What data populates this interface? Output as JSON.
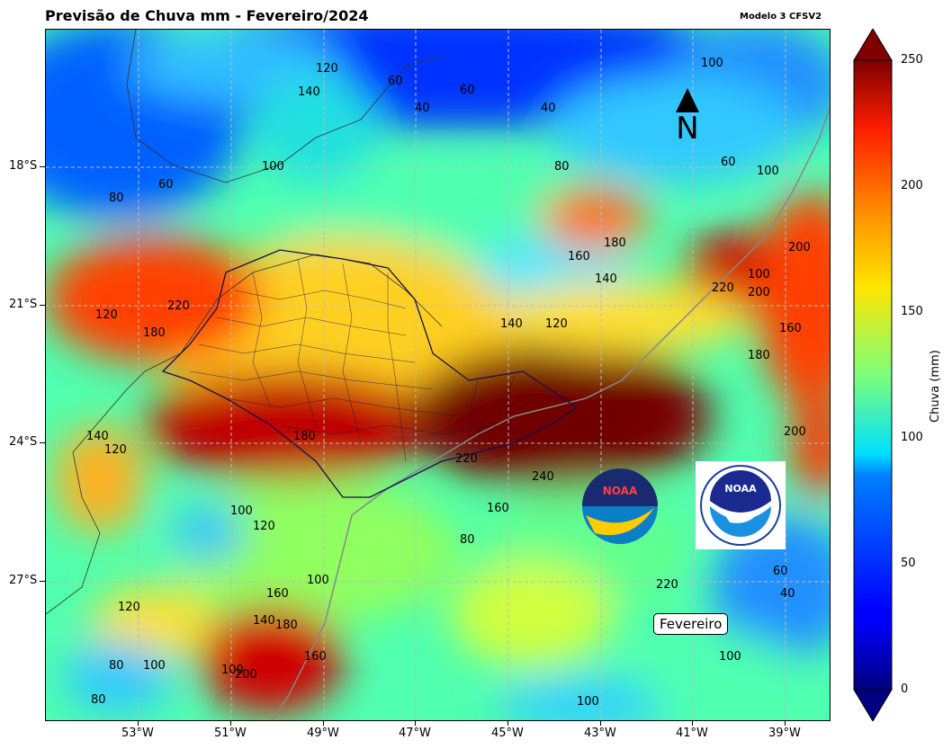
{
  "title": "Previsão de Chuva mm - Fevereiro/2024",
  "model_label": "Modelo 3 CFSV2",
  "north_label": "N",
  "month_box": "Fevereiro",
  "colorbar": {
    "label": "Chuva (mm)",
    "ticks": [
      "0",
      "50",
      "100",
      "150",
      "200",
      "250"
    ],
    "range": [
      0,
      250
    ]
  },
  "axes": {
    "lat_ticks": [
      "18°S",
      "21°S",
      "24°S",
      "27°S"
    ],
    "lon_ticks": [
      "53°W",
      "51°W",
      "49°W",
      "47°W",
      "45°W",
      "43°W",
      "41°W",
      "39°W"
    ]
  },
  "contour_labels": [
    "120",
    "60",
    "40",
    "60",
    "40",
    "100",
    "140",
    "100",
    "80",
    "60",
    "100",
    "80",
    "60",
    "100",
    "180",
    "160",
    "140",
    "200",
    "220",
    "200",
    "120",
    "220",
    "180",
    "140",
    "120",
    "180",
    "160",
    "180",
    "140",
    "120",
    "200",
    "220",
    "240",
    "160",
    "100",
    "120",
    "160",
    "120",
    "100",
    "80",
    "60",
    "40",
    "140",
    "180",
    "160",
    "100",
    "80",
    "100",
    "200",
    "220",
    "100",
    "80",
    "100"
  ],
  "logos": [
    {
      "name": "noaa-logo-dark",
      "text": "NOAA"
    },
    {
      "name": "noaa-logo-light",
      "text": "NOAA"
    }
  ],
  "logo_seal_text": "NATIONAL OCEANIC AND ATMOSPHERIC ADMINISTRATION · U.S. DEPARTMENT OF COMMERCE",
  "colors": {
    "low": "#00007f",
    "mid": "#7fff7f",
    "high": "#7f0000"
  }
}
